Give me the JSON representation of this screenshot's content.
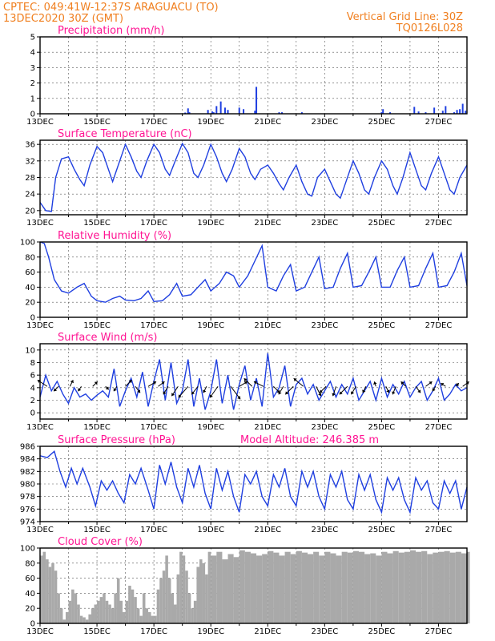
{
  "header": {
    "left_line1": "CPTEC:   049:41W-12:37S   ARAGUACU (TO)",
    "left_line2": "13DEC2020 30Z (GMT)",
    "right_line1": "Vertical Grid Line: 30Z",
    "right_line2": "TQ0126L028"
  },
  "colors": {
    "header_text": "#f07f1f",
    "panel_title": "#ff1493",
    "series_line": "#1f3fe0",
    "cloud_fill": "#a9a9a9",
    "precip_bar": "#1f3fe0"
  },
  "chart_data": [
    {
      "id": "precipitation",
      "type": "bar",
      "title": "Precipitation (mm/h)",
      "ylim": [
        0,
        5
      ],
      "yticks": [
        0,
        1,
        2,
        3,
        4,
        5
      ],
      "xlim": [
        0,
        15
      ],
      "xticks": [
        0,
        2,
        4,
        6,
        8,
        10,
        12,
        14
      ],
      "xtick_labels": [
        "13DEC",
        "15DEC",
        "17DEC",
        "19DEC",
        "21DEC",
        "23DEC",
        "25DEC",
        "27DEC"
      ],
      "grid": true,
      "x": [
        5.1,
        5.2,
        5.25,
        5.9,
        6.05,
        6.1,
        6.2,
        6.35,
        6.5,
        6.6,
        7.0,
        7.15,
        7.55,
        7.6,
        8.4,
        8.5,
        9.2,
        12.0,
        12.05,
        12.3,
        13.15,
        13.3,
        13.55,
        13.85,
        14.15,
        14.25,
        14.55,
        14.65,
        14.75,
        14.85,
        14.95
      ],
      "values": [
        0.08,
        0.35,
        0.1,
        0.25,
        0.15,
        0.1,
        0.5,
        0.8,
        0.4,
        0.25,
        0.4,
        0.3,
        0.2,
        1.75,
        0.1,
        0.1,
        0.1,
        0.1,
        0.3,
        0.1,
        0.45,
        0.15,
        0.1,
        0.4,
        0.2,
        0.5,
        0.1,
        0.25,
        0.3,
        0.65,
        0.2
      ]
    },
    {
      "id": "temperature",
      "type": "line",
      "title": "Surface Temperature (nC)",
      "ylim": [
        19,
        37
      ],
      "yticks": [
        20,
        24,
        28,
        32,
        36
      ],
      "xlim": [
        0,
        15
      ],
      "xticks": [
        0,
        2,
        4,
        6,
        8,
        10,
        12,
        14
      ],
      "xtick_labels": [
        "13DEC",
        "15DEC",
        "17DEC",
        "19DEC",
        "21DEC",
        "23DEC",
        "25DEC",
        "27DEC"
      ],
      "grid": true,
      "x": [
        0,
        0.2,
        0.4,
        0.55,
        0.75,
        1.0,
        1.2,
        1.4,
        1.55,
        1.75,
        2.0,
        2.2,
        2.4,
        2.55,
        2.75,
        3.0,
        3.2,
        3.4,
        3.55,
        3.75,
        4.0,
        4.2,
        4.4,
        4.55,
        4.75,
        5.0,
        5.2,
        5.4,
        5.55,
        5.75,
        6.0,
        6.2,
        6.4,
        6.55,
        6.75,
        7.0,
        7.2,
        7.4,
        7.55,
        7.75,
        8.0,
        8.2,
        8.4,
        8.55,
        8.75,
        9.0,
        9.2,
        9.4,
        9.55,
        9.75,
        10.0,
        10.2,
        10.4,
        10.55,
        10.75,
        11.0,
        11.2,
        11.4,
        11.55,
        11.75,
        12.0,
        12.2,
        12.4,
        12.55,
        12.75,
        13.0,
        13.2,
        13.4,
        13.55,
        13.75,
        14.0,
        14.2,
        14.4,
        14.55,
        14.75,
        15.0
      ],
      "values": [
        22,
        20,
        19.8,
        28,
        32.5,
        33,
        30,
        27.5,
        26,
        31,
        35.5,
        34,
        30,
        27,
        31,
        36,
        33,
        29.5,
        28,
        32,
        36,
        34,
        30,
        28.5,
        32,
        36.2,
        34,
        29,
        28,
        31,
        36,
        33,
        29,
        27,
        30,
        35,
        33,
        29,
        27.5,
        30,
        31,
        29,
        26.5,
        25,
        28,
        31,
        27,
        24,
        23.5,
        28,
        30,
        27,
        24,
        23,
        27,
        32,
        29,
        25,
        24,
        28,
        32,
        30,
        26,
        24,
        28,
        34,
        30,
        26,
        25,
        29,
        33,
        29,
        25,
        24,
        28,
        31
      ]
    },
    {
      "id": "humidity",
      "type": "line",
      "title": "Relative Humidity (%)",
      "ylim": [
        0,
        100
      ],
      "yticks": [
        0,
        20,
        40,
        60,
        80,
        100
      ],
      "xlim": [
        0,
        15
      ],
      "xticks": [
        0,
        2,
        4,
        6,
        8,
        10,
        12,
        14
      ],
      "xtick_labels": [
        "13DEC",
        "15DEC",
        "17DEC",
        "19DEC",
        "21DEC",
        "23DEC",
        "25DEC",
        "27DEC"
      ],
      "grid": true,
      "x": [
        0,
        0.15,
        0.3,
        0.5,
        0.75,
        1.0,
        1.3,
        1.55,
        1.8,
        2.0,
        2.3,
        2.55,
        2.8,
        3.0,
        3.3,
        3.55,
        3.8,
        4.0,
        4.3,
        4.55,
        4.8,
        5.0,
        5.3,
        5.55,
        5.8,
        6.0,
        6.3,
        6.55,
        6.8,
        7.0,
        7.3,
        7.55,
        7.8,
        8.0,
        8.3,
        8.55,
        8.8,
        9.0,
        9.3,
        9.55,
        9.8,
        10.0,
        10.3,
        10.55,
        10.8,
        11.0,
        11.3,
        11.55,
        11.8,
        12.0,
        12.3,
        12.55,
        12.8,
        13.0,
        13.3,
        13.55,
        13.8,
        14.0,
        14.3,
        14.55,
        14.8,
        15.0
      ],
      "values": [
        100,
        98,
        80,
        50,
        35,
        32,
        40,
        45,
        28,
        22,
        20,
        25,
        28,
        23,
        22,
        25,
        35,
        21,
        22,
        30,
        45,
        28,
        30,
        40,
        50,
        35,
        45,
        60,
        55,
        40,
        55,
        75,
        95,
        40,
        35,
        55,
        70,
        35,
        40,
        60,
        80,
        38,
        40,
        65,
        85,
        40,
        42,
        60,
        80,
        40,
        40,
        62,
        80,
        40,
        42,
        65,
        85,
        40,
        42,
        60,
        85,
        42
      ]
    },
    {
      "id": "wind",
      "type": "line",
      "title": "Surface Wind (m/s)",
      "ylim": [
        -1,
        11
      ],
      "yticks": [
        0,
        2,
        4,
        6,
        8,
        10
      ],
      "xlim": [
        0,
        15
      ],
      "xticks": [
        0,
        2,
        4,
        6,
        8,
        10,
        12,
        14
      ],
      "xtick_labels": [
        "13DEC",
        "15DEC",
        "17DEC",
        "19DEC",
        "21DEC",
        "23DEC",
        "25DEC",
        "27DEC"
      ],
      "grid": true,
      "x": [
        0,
        0.2,
        0.4,
        0.6,
        0.8,
        1.0,
        1.2,
        1.4,
        1.6,
        1.8,
        2.0,
        2.2,
        2.4,
        2.6,
        2.8,
        3.0,
        3.2,
        3.4,
        3.6,
        3.8,
        4.0,
        4.2,
        4.4,
        4.6,
        4.8,
        5.0,
        5.2,
        5.4,
        5.6,
        5.8,
        6.0,
        6.2,
        6.4,
        6.6,
        6.8,
        7.0,
        7.2,
        7.4,
        7.6,
        7.8,
        8.0,
        8.2,
        8.4,
        8.6,
        8.8,
        9.0,
        9.2,
        9.4,
        9.6,
        9.8,
        10.0,
        10.2,
        10.4,
        10.6,
        10.8,
        11.0,
        11.2,
        11.4,
        11.6,
        11.8,
        12.0,
        12.2,
        12.4,
        12.6,
        12.8,
        13.0,
        13.2,
        13.4,
        13.6,
        13.8,
        14.0,
        14.2,
        14.4,
        14.6,
        14.8,
        15.0
      ],
      "values": [
        2.5,
        6.0,
        3.5,
        5.0,
        3.0,
        1.5,
        4.0,
        2.5,
        3.0,
        2.0,
        2.8,
        3.5,
        2.5,
        7.0,
        1.0,
        3.5,
        5.5,
        2.5,
        6.5,
        1.0,
        5.0,
        8.5,
        2.0,
        8.0,
        1.5,
        3.5,
        8.5,
        1.0,
        5.5,
        0.5,
        3.5,
        8.5,
        1.5,
        6.0,
        0.5,
        4.5,
        7.5,
        2.0,
        5.5,
        1.0,
        9.5,
        2.5,
        4.0,
        7.5,
        1.0,
        4.5,
        5.5,
        3.0,
        4.5,
        2.0,
        3.5,
        5.0,
        2.5,
        4.5,
        3.0,
        5.5,
        2.0,
        3.5,
        5.0,
        2.0,
        5.5,
        2.5,
        4.5,
        3.0,
        5.0,
        2.5,
        4.0,
        5.0,
        2.0,
        3.5,
        5.5,
        2.0,
        3.0,
        4.5,
        3.5,
        4.0
      ],
      "vectors_x": [
        0.25,
        0.65,
        1.05,
        1.45,
        1.85,
        2.3,
        2.7,
        3.0,
        3.35,
        3.8,
        4.15,
        4.5,
        4.85,
        5.2,
        5.55,
        5.85,
        6.25,
        6.7,
        7.0,
        7.45,
        7.85,
        8.2,
        8.55,
        8.9,
        9.25,
        9.7,
        10.05,
        10.4,
        10.8,
        11.1,
        11.45,
        11.8,
        12.15,
        12.5,
        12.85,
        13.2,
        13.55,
        13.9,
        14.25,
        14.6,
        14.85
      ],
      "vectors_u": [
        -3.0,
        -1.5,
        1.0,
        -1.0,
        1.5,
        1.0,
        -1.0,
        2.0,
        1.5,
        2.5,
        2.0,
        -1.5,
        -2.0,
        -3.0,
        -2.0,
        -1.0,
        -2.5,
        3.0,
        2.5,
        -2.5,
        -3.0,
        2.0,
        -1.5,
        -2.5,
        -3.0,
        1.5,
        -2.0,
        -1.0,
        -2.5,
        -1.5,
        -1.0,
        -0.5,
        1.0,
        -1.0,
        -1.5,
        1.5,
        2.0,
        -1.0,
        -1.5,
        1.0,
        2.0
      ],
      "vectors_v": [
        2.0,
        -1.5,
        2.0,
        -1.5,
        1.5,
        -1.0,
        -1.5,
        2.0,
        -2.0,
        1.5,
        1.5,
        -2.5,
        -3.0,
        -3.5,
        -2.5,
        -2.0,
        -3.5,
        -4.0,
        1.5,
        2.5,
        1.5,
        -2.0,
        -2.5,
        -2.5,
        2.5,
        -3.0,
        -2.0,
        -3.0,
        -2.5,
        -2.5,
        -2.0,
        1.5,
        -2.0,
        -2.5,
        1.5,
        -2.0,
        1.5,
        -1.5,
        1.0,
        1.0,
        1.5
      ]
    },
    {
      "id": "pressure",
      "type": "line",
      "title": "Surface Pressure (hPa)",
      "subtitle": "Model Altitude: 246.385 m",
      "ylim": [
        974,
        986
      ],
      "yticks": [
        974,
        976,
        978,
        980,
        982,
        984,
        986
      ],
      "xlim": [
        0,
        15
      ],
      "xticks": [
        0,
        2,
        4,
        6,
        8,
        10,
        12,
        14
      ],
      "xtick_labels": [
        "13DEC",
        "15DEC",
        "17DEC",
        "19DEC",
        "21DEC",
        "23DEC",
        "25DEC",
        "27DEC"
      ],
      "grid": true,
      "x": [
        0,
        0.25,
        0.5,
        0.7,
        0.9,
        1.1,
        1.3,
        1.5,
        1.75,
        1.95,
        2.15,
        2.35,
        2.55,
        2.75,
        2.95,
        3.15,
        3.35,
        3.55,
        3.8,
        4.0,
        4.2,
        4.4,
        4.6,
        4.8,
        5.0,
        5.2,
        5.4,
        5.6,
        5.8,
        6.0,
        6.2,
        6.4,
        6.6,
        6.8,
        7.0,
        7.2,
        7.4,
        7.6,
        7.8,
        8.0,
        8.2,
        8.4,
        8.6,
        8.8,
        9.0,
        9.2,
        9.4,
        9.6,
        9.8,
        10.0,
        10.2,
        10.4,
        10.6,
        10.8,
        11.0,
        11.2,
        11.4,
        11.6,
        11.8,
        12.0,
        12.2,
        12.4,
        12.6,
        12.8,
        13.0,
        13.2,
        13.4,
        13.6,
        13.8,
        14.0,
        14.2,
        14.4,
        14.6,
        14.8,
        15.0
      ],
      "values": [
        984.5,
        984.2,
        985.2,
        982.0,
        979.5,
        982.5,
        980.0,
        982.5,
        979.5,
        976.5,
        980.5,
        979.0,
        980.5,
        978.5,
        977.0,
        981.5,
        980.0,
        982.5,
        979.0,
        976.0,
        983.0,
        980.0,
        983.5,
        979.5,
        977.0,
        982.5,
        979.5,
        983.0,
        978.5,
        976.0,
        982.5,
        979.0,
        982.0,
        978.0,
        975.5,
        981.5,
        980.0,
        982.0,
        978.0,
        976.5,
        981.5,
        979.5,
        982.5,
        978.0,
        976.5,
        982.0,
        979.5,
        982.0,
        978.0,
        976.0,
        981.5,
        979.5,
        982.0,
        977.5,
        976.0,
        981.5,
        979.0,
        981.5,
        977.5,
        975.5,
        981.0,
        979.0,
        981.0,
        977.5,
        975.5,
        981.0,
        979.0,
        980.5,
        977.0,
        976.0,
        980.5,
        978.5,
        980.5,
        976.0,
        979.5
      ]
    },
    {
      "id": "cloud",
      "type": "area",
      "title": "Cloud Cover (%)",
      "ylim": [
        0,
        100
      ],
      "yticks": [
        0,
        20,
        40,
        60,
        80,
        100
      ],
      "xlim": [
        0,
        15
      ],
      "xticks": [
        0,
        2,
        4,
        6,
        8,
        10,
        12,
        14
      ],
      "xtick_labels": [
        "13DEC",
        "15DEC",
        "17DEC",
        "19DEC",
        "21DEC",
        "23DEC",
        "25DEC",
        "27DEC"
      ],
      "grid": true,
      "x": [
        0,
        0.1,
        0.2,
        0.3,
        0.4,
        0.5,
        0.6,
        0.7,
        0.8,
        0.9,
        1.0,
        1.1,
        1.2,
        1.3,
        1.4,
        1.5,
        1.6,
        1.7,
        1.8,
        1.9,
        2.0,
        2.1,
        2.2,
        2.3,
        2.4,
        2.5,
        2.6,
        2.7,
        2.8,
        2.9,
        3.0,
        3.1,
        3.2,
        3.3,
        3.4,
        3.5,
        3.6,
        3.7,
        3.8,
        3.9,
        4.0,
        4.1,
        4.2,
        4.3,
        4.4,
        4.5,
        4.6,
        4.7,
        4.8,
        4.9,
        5.0,
        5.1,
        5.2,
        5.3,
        5.4,
        5.5,
        5.6,
        5.7,
        5.8,
        5.9,
        6.0,
        6.2,
        6.4,
        6.6,
        6.8,
        7.0,
        7.2,
        7.4,
        7.6,
        7.8,
        8.0,
        8.2,
        8.4,
        8.6,
        8.8,
        9.0,
        9.2,
        9.4,
        9.6,
        9.8,
        10.0,
        10.2,
        10.4,
        10.6,
        10.8,
        11.0,
        11.2,
        11.4,
        11.6,
        11.8,
        12.0,
        12.2,
        12.4,
        12.6,
        12.8,
        13.0,
        13.2,
        13.4,
        13.6,
        13.8,
        14.0,
        14.2,
        14.4,
        14.6,
        14.8,
        15.0
      ],
      "values": [
        90,
        95,
        85,
        75,
        80,
        70,
        40,
        20,
        5,
        15,
        30,
        45,
        40,
        25,
        10,
        8,
        5,
        12,
        20,
        25,
        30,
        35,
        40,
        30,
        25,
        20,
        40,
        60,
        30,
        15,
        30,
        50,
        45,
        35,
        20,
        10,
        40,
        20,
        15,
        10,
        10,
        45,
        60,
        70,
        90,
        60,
        40,
        25,
        65,
        95,
        90,
        70,
        40,
        20,
        30,
        75,
        85,
        80,
        65,
        95,
        90,
        95,
        85,
        92,
        88,
        97,
        95,
        93,
        90,
        92,
        96,
        94,
        90,
        95,
        92,
        96,
        94,
        92,
        95,
        90,
        95,
        93,
        90,
        95,
        94,
        96,
        95,
        92,
        93,
        90,
        95,
        93,
        96,
        94,
        95,
        97,
        95,
        96,
        92,
        94,
        95,
        96,
        94,
        95,
        93,
        95
      ]
    }
  ]
}
